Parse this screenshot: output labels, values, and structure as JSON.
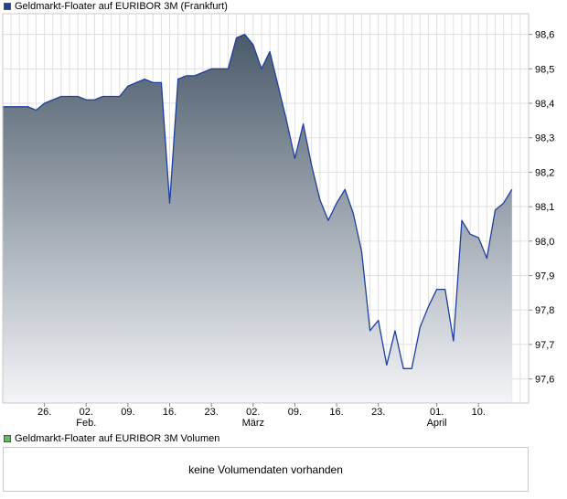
{
  "legend": {
    "price_label": "Geldmarkt-Floater auf EURIBOR 3M (Frankfurt)",
    "price_color": "#1f3f9f",
    "volume_label": "Geldmarkt-Floater auf EURIBOR 3M Volumen",
    "volume_color": "#5cbf5c"
  },
  "volume_panel": {
    "message": "keine Volumendaten vorhanden"
  },
  "chart_data": {
    "type": "area",
    "title": "Geldmarkt-Floater auf EURIBOR 3M (Frankfurt)",
    "y_axis_position": "right",
    "ylim": [
      97.53,
      98.66
    ],
    "y_ticks": [
      97.6,
      97.7,
      97.8,
      97.9,
      98.0,
      98.1,
      98.2,
      98.3,
      98.4,
      98.5,
      98.6
    ],
    "y_tick_labels": [
      "97,6",
      "97,7",
      "97,8",
      "97,9",
      "98,0",
      "98,1",
      "98,2",
      "98,3",
      "98,4",
      "98,5",
      "98,6"
    ],
    "x_domain": [
      0,
      63
    ],
    "x_ticks": [
      {
        "x": 5,
        "label": "26.",
        "sub": ""
      },
      {
        "x": 10,
        "label": "02.",
        "sub": "Feb."
      },
      {
        "x": 15,
        "label": "09.",
        "sub": ""
      },
      {
        "x": 20,
        "label": "16.",
        "sub": ""
      },
      {
        "x": 25,
        "label": "23.",
        "sub": ""
      },
      {
        "x": 30,
        "label": "02.",
        "sub": "März"
      },
      {
        "x": 35,
        "label": "09.",
        "sub": ""
      },
      {
        "x": 40,
        "label": "16.",
        "sub": ""
      },
      {
        "x": 45,
        "label": "23.",
        "sub": ""
      },
      {
        "x": 52,
        "label": "01.",
        "sub": "April"
      },
      {
        "x": 57,
        "label": "10.",
        "sub": ""
      }
    ],
    "grid": true,
    "series": [
      {
        "line_color": "#1f3f9f",
        "fill_top": "#4a5a6a",
        "fill_bottom": "#f4f5f8",
        "points": [
          [
            0,
            98.39
          ],
          [
            1,
            98.39
          ],
          [
            2,
            98.39
          ],
          [
            3,
            98.39
          ],
          [
            4,
            98.38
          ],
          [
            5,
            98.4
          ],
          [
            6,
            98.41
          ],
          [
            7,
            98.42
          ],
          [
            8,
            98.42
          ],
          [
            9,
            98.42
          ],
          [
            10,
            98.41
          ],
          [
            11,
            98.41
          ],
          [
            12,
            98.42
          ],
          [
            13,
            98.42
          ],
          [
            14,
            98.42
          ],
          [
            15,
            98.45
          ],
          [
            16,
            98.46
          ],
          [
            17,
            98.47
          ],
          [
            18,
            98.46
          ],
          [
            19,
            98.46
          ],
          [
            20,
            98.11
          ],
          [
            21,
            98.47
          ],
          [
            22,
            98.48
          ],
          [
            23,
            98.48
          ],
          [
            24,
            98.49
          ],
          [
            25,
            98.5
          ],
          [
            26,
            98.5
          ],
          [
            27,
            98.5
          ],
          [
            28,
            98.59
          ],
          [
            29,
            98.6
          ],
          [
            30,
            98.57
          ],
          [
            31,
            98.5
          ],
          [
            32,
            98.55
          ],
          [
            33,
            98.45
          ],
          [
            34,
            98.35
          ],
          [
            35,
            98.24
          ],
          [
            36,
            98.34
          ],
          [
            37,
            98.22
          ],
          [
            38,
            98.12
          ],
          [
            39,
            98.06
          ],
          [
            40,
            98.11
          ],
          [
            41,
            98.15
          ],
          [
            42,
            98.08
          ],
          [
            43,
            97.97
          ],
          [
            44,
            97.74
          ],
          [
            45,
            97.77
          ],
          [
            46,
            97.64
          ],
          [
            47,
            97.74
          ],
          [
            48,
            97.63
          ],
          [
            49,
            97.63
          ],
          [
            50,
            97.75
          ],
          [
            51,
            97.81
          ],
          [
            52,
            97.86
          ],
          [
            53,
            97.86
          ],
          [
            54,
            97.71
          ],
          [
            55,
            98.06
          ],
          [
            56,
            98.02
          ],
          [
            57,
            98.01
          ],
          [
            58,
            97.95
          ],
          [
            59,
            98.09
          ],
          [
            60,
            98.11
          ],
          [
            61,
            98.15
          ]
        ]
      }
    ]
  }
}
